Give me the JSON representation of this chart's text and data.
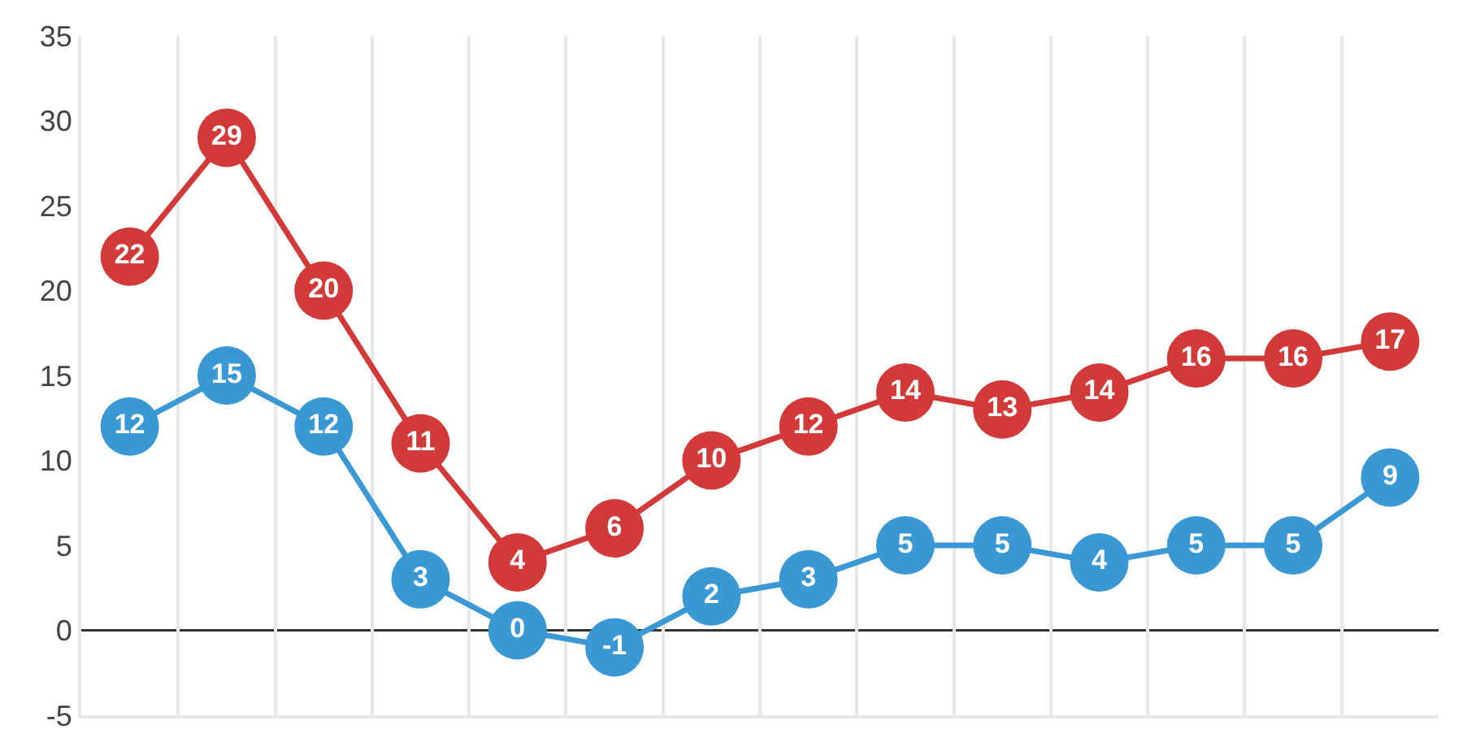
{
  "chart_data": {
    "type": "line",
    "categories": [
      null,
      null,
      null,
      null,
      null,
      null,
      null,
      null,
      null,
      null,
      null,
      null,
      null,
      null
    ],
    "series": [
      {
        "color": "#d23a3a",
        "values": [
          22,
          29,
          20,
          11,
          4,
          6,
          10,
          12,
          14,
          13,
          14,
          16,
          16,
          17
        ]
      },
      {
        "color": "#3a98d5",
        "values": [
          12,
          15,
          12,
          3,
          0,
          -1,
          2,
          3,
          5,
          5,
          4,
          5,
          5,
          9
        ]
      }
    ],
    "ylim": [
      -5,
      35
    ],
    "yticks": [
      -5,
      0,
      5,
      10,
      15,
      20,
      25,
      30,
      35
    ],
    "ref_lines": [
      {
        "axis": "y",
        "value": 0,
        "color": "#333333"
      }
    ],
    "grid": "x",
    "marker": "circle",
    "line_style": "solid",
    "data_labels": true,
    "legend": false
  }
}
